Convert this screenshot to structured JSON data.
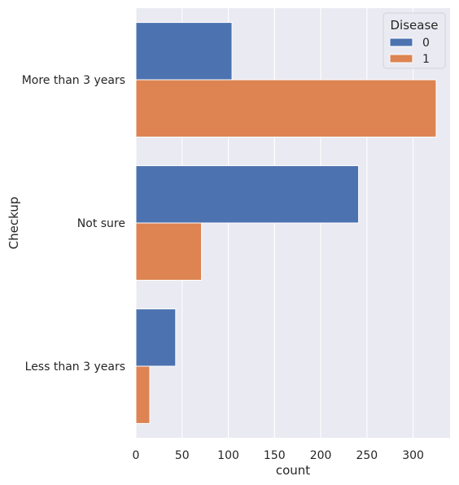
{
  "chart_data": {
    "type": "bar",
    "orientation": "horizontal",
    "xlabel": "count",
    "ylabel": "Checkup",
    "categories": [
      "More than 3 years",
      "Not sure",
      "Less than 3 years"
    ],
    "series": [
      {
        "name": "0",
        "values": [
          104,
          241,
          43
        ],
        "color": "#4c72b0"
      },
      {
        "name": "1",
        "values": [
          325,
          71,
          15
        ],
        "color": "#dd8452"
      }
    ],
    "xlim": [
      0,
      340
    ],
    "xticks": [
      0,
      50,
      100,
      150,
      200,
      250,
      300
    ],
    "grid": true,
    "legend": {
      "title": "Disease",
      "placement": "top-right"
    },
    "background": "#eaeaf2"
  }
}
